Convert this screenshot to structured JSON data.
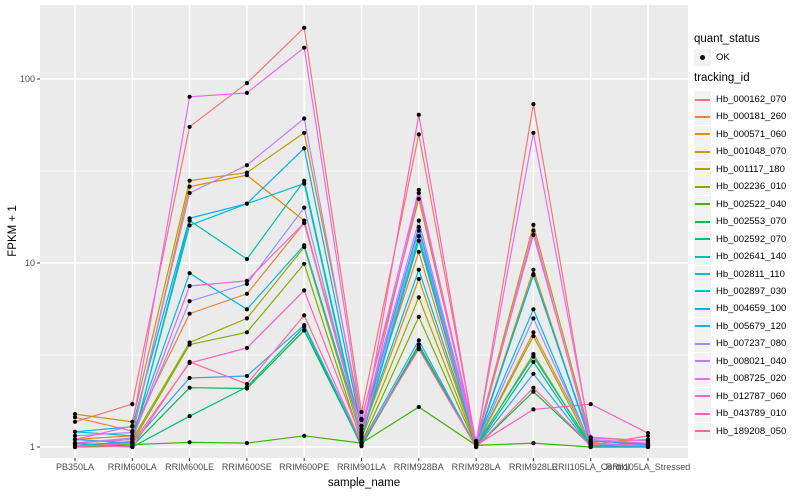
{
  "axes": {
    "x_title": "sample_name",
    "y_title": "FPKM + 1"
  },
  "legend": {
    "quant_status_title": "quant_status",
    "quant_status_items": [
      {
        "label": "OK",
        "marker": "black-point"
      }
    ],
    "tracking_id_title": "tracking_id"
  },
  "chart_data": {
    "type": "line",
    "title": "",
    "xlabel": "sample_name",
    "ylabel": "FPKM + 1",
    "y_scale": "log10",
    "y_ticks": [
      1,
      10,
      100
    ],
    "y_minor_ticks": [
      3.162,
      31.62
    ],
    "ylim": [
      0.9,
      230
    ],
    "grid": "white major and minor on grey panel",
    "legend_position": "right",
    "panel_bg": "#EBEBEB",
    "point_color": "#000000",
    "categories": [
      "PB350LA",
      "RRIM600LA",
      "RRIM600LE",
      "RRIM600SE",
      "RRIM600PE",
      "RRIM901LA",
      "RRIM928BA",
      "RRIM928LA",
      "RRIM928LE",
      "RRII105LA_Control",
      "RRII105LA_Stressed"
    ],
    "series": [
      {
        "name": "Hb_000162_070",
        "color": "#F8766D",
        "values": [
          1.37,
          1.71,
          55,
          95,
          190,
          1.55,
          50,
          1.05,
          73,
          1.08,
          1.04
        ]
      },
      {
        "name": "Hb_000181_260",
        "color": "#EB8335",
        "values": [
          1.45,
          1.22,
          5.3,
          6.8,
          16.5,
          1.3,
          11.5,
          1.02,
          4.2,
          1.06,
          1.1
        ]
      },
      {
        "name": "Hb_000571_060",
        "color": "#D89000",
        "values": [
          1.1,
          1.15,
          26,
          30,
          17,
          1.18,
          8.2,
          1.03,
          9.2,
          1.04,
          1.02
        ]
      },
      {
        "name": "Hb_001048_070",
        "color": "#C09B00",
        "values": [
          1.51,
          1.37,
          28,
          31,
          51,
          1.42,
          22.3,
          1.08,
          16.1,
          1.13,
          1.08
        ]
      },
      {
        "name": "Hb_001117_180",
        "color": "#A3A500",
        "values": [
          1.05,
          1.1,
          3.7,
          5.0,
          12.2,
          1.12,
          6.5,
          1.02,
          4.0,
          1.02,
          1.05
        ]
      },
      {
        "name": "Hb_002236_010",
        "color": "#7CAE00",
        "values": [
          1.02,
          1.06,
          3.6,
          4.2,
          9.9,
          1.06,
          5.1,
          1.01,
          3.2,
          1.01,
          1.02
        ]
      },
      {
        "name": "Hb_002522_040",
        "color": "#39B600",
        "values": [
          1.0,
          1.03,
          1.06,
          1.05,
          1.15,
          1.05,
          1.65,
          1.02,
          1.05,
          1.0,
          1.0
        ]
      },
      {
        "name": "Hb_002553_070",
        "color": "#00BB4E",
        "values": [
          1.0,
          1.01,
          2.1,
          2.08,
          4.3,
          1.02,
          3.6,
          1.0,
          2.0,
          1.02,
          1.0
        ]
      },
      {
        "name": "Hb_002592_070",
        "color": "#00BF7D",
        "values": [
          1.05,
          1.0,
          1.47,
          2.12,
          4.5,
          1.01,
          3.5,
          1.0,
          2.9,
          1.0,
          1.0
        ]
      },
      {
        "name": "Hb_002641_140",
        "color": "#00C1A3",
        "values": [
          1.1,
          1.05,
          17,
          10.5,
          28,
          1.14,
          13.2,
          1.03,
          3.1,
          1.03,
          1.02
        ]
      },
      {
        "name": "Hb_002811_110",
        "color": "#00C0C4",
        "values": [
          1.02,
          1.07,
          16,
          21,
          27,
          1.1,
          14,
          1.02,
          8.7,
          1.05,
          1.0
        ]
      },
      {
        "name": "Hb_002897_030",
        "color": "#00BAE0",
        "values": [
          1.21,
          1.15,
          8.8,
          5.6,
          12.5,
          1.2,
          9.2,
          1.05,
          5.6,
          1.02,
          1.05
        ]
      },
      {
        "name": "Hb_004659_100",
        "color": "#00B0F6",
        "values": [
          1.21,
          1.29,
          17.5,
          21,
          42,
          1.25,
          15.7,
          1.04,
          8.6,
          1.08,
          1.03
        ]
      },
      {
        "name": "Hb_005679_120",
        "color": "#35A2FF",
        "values": [
          1.1,
          1.05,
          2.37,
          2.43,
          4.6,
          1.05,
          3.8,
          1.0,
          2.5,
          1.0,
          1.0
        ]
      },
      {
        "name": "Hb_007237_080",
        "color": "#9590FF",
        "values": [
          1.05,
          1.12,
          6.2,
          7.7,
          20,
          1.15,
          15,
          1.02,
          5.0,
          1.03,
          1.02
        ]
      },
      {
        "name": "Hb_008021_040",
        "color": "#C77CFF",
        "values": [
          1.15,
          1.2,
          24,
          34,
          61,
          1.3,
          17,
          1.06,
          14.2,
          1.1,
          1.05
        ]
      },
      {
        "name": "Hb_008725_020",
        "color": "#E76BF3",
        "values": [
          1.1,
          1.3,
          80,
          84,
          148,
          1.4,
          25,
          1.07,
          51,
          1.12,
          1.08
        ]
      },
      {
        "name": "Hb_012787_060",
        "color": "#FA62DB",
        "values": [
          1.05,
          1.1,
          7.5,
          8.0,
          16.5,
          1.2,
          24,
          1.03,
          15,
          1.05,
          1.02
        ]
      },
      {
        "name": "Hb_043789_010",
        "color": "#FF62BC",
        "values": [
          1.0,
          1.05,
          2.86,
          3.45,
          7.1,
          1.1,
          64,
          1.02,
          1.6,
          1.71,
          1.19
        ]
      },
      {
        "name": "Hb_189208_050",
        "color": "#FF6A98",
        "values": [
          1.02,
          1.0,
          2.9,
          2.2,
          5.2,
          1.05,
          3.4,
          1.0,
          2.1,
          1.02,
          1.15
        ]
      }
    ]
  }
}
